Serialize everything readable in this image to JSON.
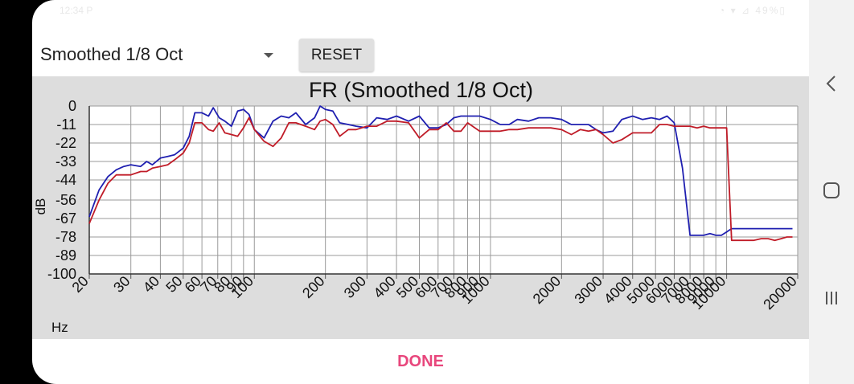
{
  "status_bar": {
    "time": "12:34 P",
    "icons": "◔ ▾ ⊿ 49%▯"
  },
  "spinner": {
    "selected": "Smoothed 1/8 Oct"
  },
  "buttons": {
    "reset": "RESET",
    "done": "DONE"
  },
  "nav": {
    "back": "back-icon",
    "home": "home-icon",
    "recents": "recents-icon"
  },
  "colors": {
    "blue_series": "#1f1fb0",
    "red_series": "#c01c28",
    "done_text": "#e8467c"
  },
  "chart_data": {
    "type": "line",
    "title": "FR (Smoothed 1/8 Oct)",
    "xlabel": "Hz",
    "ylabel": "dB",
    "x_scale": "log",
    "xlim": [
      20,
      20000
    ],
    "ylim": [
      -100,
      0
    ],
    "y_ticks": [
      0,
      -11,
      -22,
      -33,
      -44,
      -56,
      -67,
      -78,
      -89,
      -100
    ],
    "y_tick_labels": [
      "0",
      "-11",
      "-22",
      "-33",
      "-44",
      "-56",
      "-67",
      "-78",
      "-89",
      "-100"
    ],
    "x_ticks": [
      20,
      30,
      40,
      50,
      60,
      70,
      80,
      90,
      100,
      200,
      300,
      400,
      500,
      600,
      700,
      800,
      900,
      1000,
      2000,
      3000,
      4000,
      5000,
      6000,
      7000,
      8000,
      9000,
      10000,
      20000
    ],
    "x_tick_labels": [
      "20",
      "30",
      "40",
      "50",
      "60",
      "70",
      "80",
      "90",
      "100",
      "200",
      "300",
      "400",
      "500",
      "600",
      "700",
      "800",
      "900",
      "1000",
      "2000",
      "3000",
      "4000",
      "5000",
      "6000",
      "7000",
      "8000",
      "9000",
      "10000",
      "20000"
    ],
    "grid": true,
    "series": [
      {
        "color": "#1f1fb0",
        "x": [
          20,
          22,
          24,
          26,
          28,
          30,
          33,
          35,
          37,
          40,
          43,
          46,
          50,
          53,
          56,
          60,
          64,
          67,
          71,
          75,
          80,
          85,
          90,
          95,
          100,
          110,
          120,
          130,
          140,
          150,
          165,
          180,
          190,
          200,
          215,
          230,
          250,
          270,
          300,
          330,
          365,
          400,
          450,
          500,
          550,
          600,
          650,
          700,
          750,
          800,
          900,
          1000,
          1100,
          1200,
          1300,
          1450,
          1600,
          1800,
          2000,
          2200,
          2400,
          2600,
          2800,
          3000,
          3300,
          3600,
          4000,
          4400,
          4800,
          5200,
          5600,
          6000,
          6500,
          7000,
          7500,
          8000,
          8500,
          9000,
          9500,
          10000,
          10500,
          11000,
          12000,
          13000,
          14000,
          15000,
          16000,
          17000,
          18000,
          19000
        ],
        "values": [
          -66,
          -50,
          -42,
          -38,
          -36,
          -35,
          -36,
          -33,
          -35,
          -31,
          -30,
          -29,
          -25,
          -18,
          -4,
          -4,
          -6,
          -1,
          -7,
          -9,
          -12,
          -3,
          -2,
          -5,
          -14,
          -19,
          -9,
          -6,
          -7,
          -4,
          -11,
          -7,
          0,
          -2,
          -3,
          -10,
          -11,
          -12,
          -13,
          -7,
          -8,
          -6,
          -9,
          -6,
          -13,
          -13,
          -11,
          -7,
          -6,
          -6,
          -6,
          -8,
          -11,
          -11,
          -8,
          -9,
          -7,
          -7,
          -8,
          -11,
          -11,
          -11,
          -14,
          -16,
          -15,
          -8,
          -6,
          -8,
          -7,
          -8,
          -6,
          -10,
          -37,
          -77,
          -77,
          -77,
          -76,
          -77,
          -77,
          -75,
          -73,
          -73,
          -73,
          -73,
          -73,
          -73,
          -73,
          -73,
          -73,
          -73
        ]
      },
      {
        "color": "#c01c28",
        "x": [
          20,
          22,
          24,
          26,
          28,
          30,
          33,
          35,
          37,
          40,
          43,
          46,
          50,
          53,
          56,
          60,
          64,
          67,
          71,
          75,
          80,
          85,
          90,
          95,
          100,
          110,
          120,
          130,
          140,
          150,
          165,
          180,
          190,
          200,
          215,
          230,
          250,
          270,
          300,
          330,
          365,
          400,
          450,
          500,
          550,
          600,
          650,
          700,
          750,
          800,
          900,
          1000,
          1100,
          1200,
          1300,
          1450,
          1600,
          1800,
          2000,
          2200,
          2400,
          2600,
          2800,
          3000,
          3300,
          3600,
          4000,
          4400,
          4800,
          5200,
          5600,
          6000,
          6500,
          7000,
          7500,
          8000,
          8500,
          9000,
          9500,
          10000,
          10500,
          11000,
          12000,
          13000,
          14000,
          15000,
          16000,
          17000,
          18000,
          19000
        ],
        "values": [
          -70,
          -56,
          -46,
          -41,
          -41,
          -41,
          -39,
          -39,
          -37,
          -36,
          -35,
          -32,
          -28,
          -22,
          -10,
          -10,
          -14,
          -15,
          -10,
          -16,
          -17,
          -18,
          -13,
          -7,
          -14,
          -21,
          -24,
          -19,
          -10,
          -10,
          -12,
          -14,
          -9,
          -8,
          -11,
          -18,
          -14,
          -14,
          -12,
          -12,
          -9,
          -9,
          -10,
          -19,
          -14,
          -14,
          -10,
          -15,
          -15,
          -10,
          -15,
          -15,
          -15,
          -14,
          -14,
          -13,
          -13,
          -13,
          -14,
          -17,
          -14,
          -15,
          -14,
          -17,
          -22,
          -20,
          -16,
          -16,
          -16,
          -11,
          -11,
          -12,
          -12,
          -12,
          -13,
          -12,
          -13,
          -13,
          -13,
          -13,
          -80,
          -80,
          -80,
          -80,
          -79,
          -79,
          -80,
          -79,
          -78,
          -78
        ]
      }
    ]
  }
}
